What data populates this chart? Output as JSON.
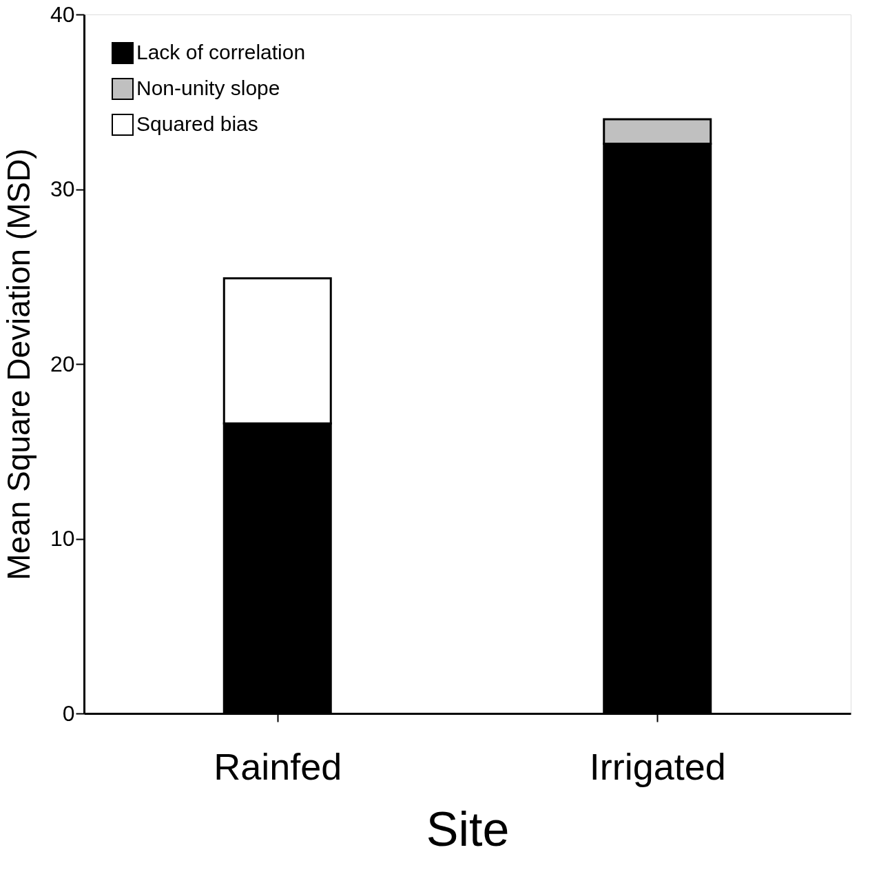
{
  "chart_data": {
    "type": "bar",
    "stacked": true,
    "xlabel": "Site",
    "ylabel": "Mean Square Deviation (MSD)",
    "categories": [
      "Rainfed",
      "Irrigated"
    ],
    "series": [
      {
        "name": "Lack of correlation",
        "color": "#000000",
        "values": [
          16.6,
          32.6
        ]
      },
      {
        "name": "Non-unity slope",
        "color": "#c0c0c0",
        "values": [
          0,
          1.4
        ]
      },
      {
        "name": "Squared bias",
        "color": "#ffffff",
        "values": [
          8.3,
          0
        ]
      }
    ],
    "ylim": [
      0,
      40
    ],
    "yticks": [
      0,
      10,
      20,
      30,
      40
    ],
    "grid": false,
    "legend": "top left"
  }
}
